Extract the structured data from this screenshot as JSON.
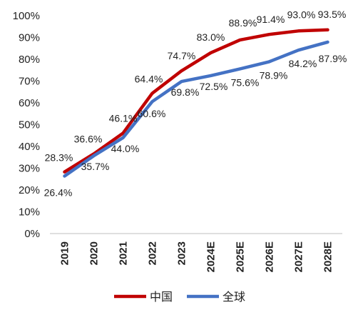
{
  "chart_data": {
    "type": "line",
    "title": "",
    "xlabel": "",
    "ylabel": "",
    "categories": [
      "2019",
      "2020",
      "2021",
      "2022",
      "2023",
      "2024E",
      "2025E",
      "2026E",
      "2027E",
      "2028E"
    ],
    "ylim": [
      0,
      100
    ],
    "yticks": [
      "0%",
      "10%",
      "20%",
      "30%",
      "40%",
      "50%",
      "60%",
      "70%",
      "80%",
      "90%",
      "100%"
    ],
    "grid": false,
    "legend_position": "bottom",
    "series": [
      {
        "name": "中国",
        "color": "#C00000",
        "values": [
          28.3,
          36.6,
          46.1,
          64.4,
          74.7,
          83.0,
          88.9,
          91.4,
          93.0,
          93.5
        ],
        "labels": [
          "28.3%",
          "36.6%",
          "46.1%",
          "64.4%",
          "74.7%",
          "83.0%",
          "88.9%",
          "91.4%",
          "93.0%",
          "93.5%"
        ]
      },
      {
        "name": "全球",
        "color": "#4472C4",
        "values": [
          26.4,
          35.7,
          44.0,
          60.6,
          69.8,
          72.5,
          75.6,
          78.9,
          84.2,
          87.9
        ],
        "labels": [
          "26.4%",
          "35.7%",
          "44.0%",
          "60.6%",
          "69.8%",
          "72.5%",
          "75.6%",
          "78.9%",
          "84.2%",
          "87.9%"
        ]
      }
    ]
  }
}
